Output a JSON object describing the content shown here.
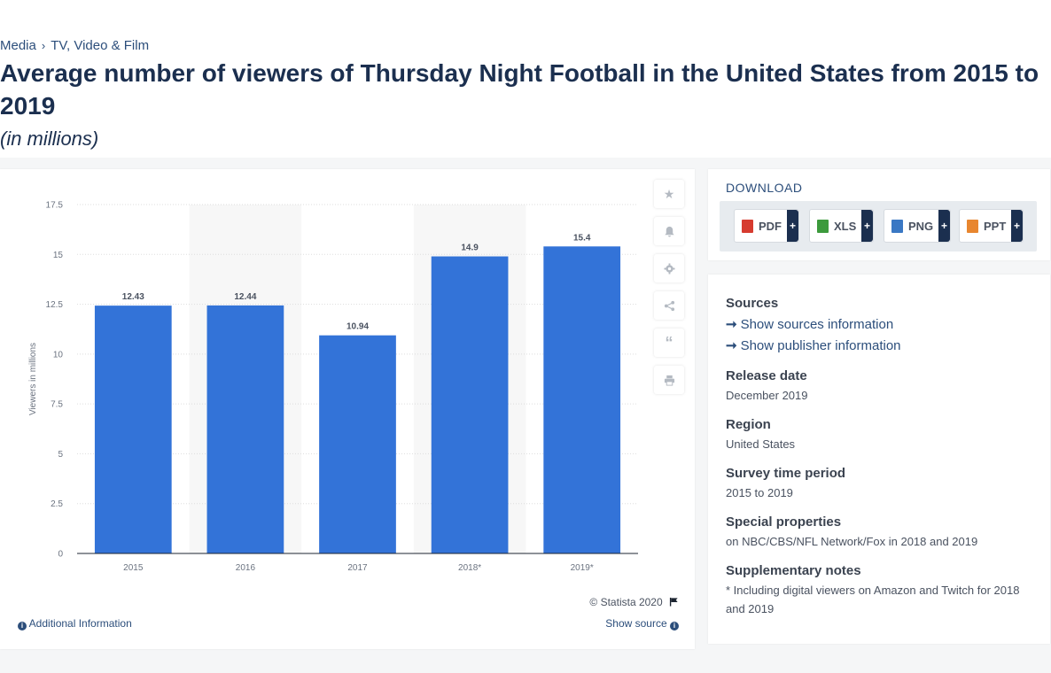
{
  "breadcrumb": {
    "items": [
      "Media",
      "TV, Video & Film"
    ],
    "separator": "›"
  },
  "page_title": "Average number of viewers of Thursday Night Football in the United States from 2015 to 2019",
  "subtitle": "(in millions)",
  "chart_footer": {
    "copyright": "© Statista 2020",
    "additional_info": "Additional Information",
    "show_source": "Show source"
  },
  "download": {
    "title": "DOWNLOAD",
    "buttons": [
      {
        "label": "PDF",
        "plus": "+",
        "icon": "pdf-file-icon",
        "color": "#d63b2f"
      },
      {
        "label": "XLS",
        "plus": "+",
        "icon": "xls-file-icon",
        "color": "#3c9a3c"
      },
      {
        "label": "PNG",
        "plus": "+",
        "icon": "png-file-icon",
        "color": "#3a78c4"
      },
      {
        "label": "PPT",
        "plus": "+",
        "icon": "ppt-file-icon",
        "color": "#e8862f"
      }
    ]
  },
  "meta": {
    "sources_heading": "Sources",
    "show_sources": "Show sources information",
    "show_publisher": "Show publisher information",
    "release_date_heading": "Release date",
    "release_date": "December 2019",
    "region_heading": "Region",
    "region": "United States",
    "survey_heading": "Survey time period",
    "survey": "2015 to 2019",
    "special_heading": "Special properties",
    "special": "on NBC/CBS/NFL Network/Fox in 2018 and 2019",
    "notes_heading": "Supplementary notes",
    "notes": "* Including digital viewers on Amazon and Twitch for 2018 and 2019"
  },
  "tools": [
    "star-icon",
    "bell-icon",
    "gear-icon",
    "share-icon",
    "quote-icon",
    "print-icon"
  ],
  "colors": {
    "bar": "#3373d8",
    "accent": "#2c4e7b"
  },
  "chart_data": {
    "type": "bar",
    "categories": [
      "2015",
      "2016",
      "2017",
      "2018*",
      "2019*"
    ],
    "values": [
      12.43,
      12.44,
      10.94,
      14.9,
      15.4
    ],
    "value_labels": [
      "12.43",
      "12.44",
      "10.94",
      "14.9",
      "15.4"
    ],
    "ylabel": "Viewers in millions",
    "xlabel": "",
    "ylim": [
      0,
      17.5
    ],
    "yticks": [
      0,
      2.5,
      5,
      7.5,
      10,
      12.5,
      15,
      17.5
    ],
    "ytick_labels": [
      "0",
      "2.5",
      "5",
      "7.5",
      "10",
      "12.5",
      "15",
      "17.5"
    ],
    "grid": true,
    "alternating_column_shading": true
  }
}
